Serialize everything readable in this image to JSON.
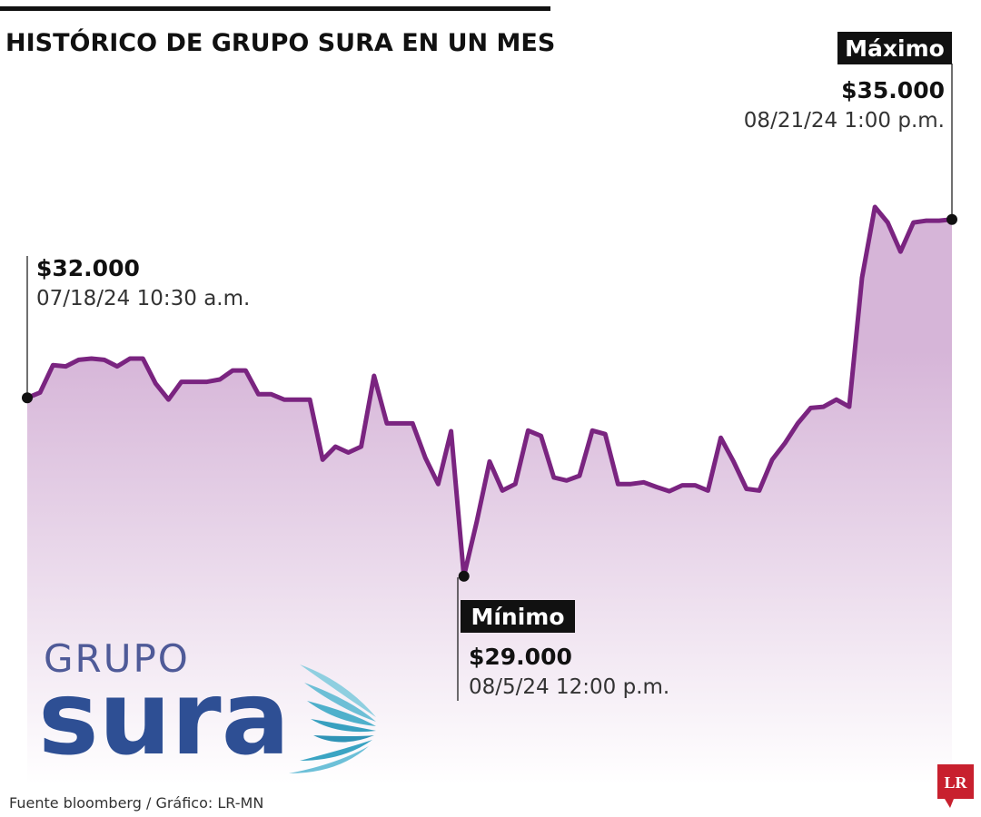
{
  "chart_data": {
    "type": "line",
    "title": "HISTÓRICO DE GRUPO SURA EN UN MES",
    "color": "#7a2480",
    "fill_colors": [
      "#d6b5d8",
      "#ffffff"
    ],
    "ylim": [
      25500,
      38600
    ],
    "values": [
      32000,
      32090,
      32550,
      32530,
      32640,
      32660,
      32640,
      32530,
      32660,
      32660,
      32240,
      31970,
      32270,
      32270,
      32270,
      32310,
      32460,
      32460,
      32060,
      32060,
      31970,
      31970,
      31970,
      30960,
      31180,
      31080,
      31180,
      32370,
      31570,
      31570,
      31570,
      30990,
      30550,
      31440,
      29000,
      29920,
      30930,
      30440,
      30550,
      31450,
      31360,
      30660,
      30610,
      30690,
      31450,
      31390,
      30550,
      30550,
      30580,
      30500,
      30430,
      30530,
      30530,
      30440,
      31330,
      30930,
      30470,
      30440,
      30960,
      31240,
      31570,
      31830,
      31850,
      31970,
      31850,
      34020,
      35210,
      34950,
      34460,
      34950,
      34980,
      34980,
      35000
    ],
    "annotations": {
      "start": {
        "value": "$32.000",
        "date": "07/18/24 10:30 a.m."
      },
      "min": {
        "label": "Mínimo",
        "value": "$29.000",
        "date": "08/5/24 12:00 p.m."
      },
      "max": {
        "label": "Máximo",
        "value": "$35.000",
        "date": "08/21/24 1:00 p.m."
      }
    }
  },
  "logo": {
    "top": "GRUPO",
    "main": "sura"
  },
  "source": "Fuente bloomberg / Gráfico: LR-MN",
  "badge": "LR"
}
